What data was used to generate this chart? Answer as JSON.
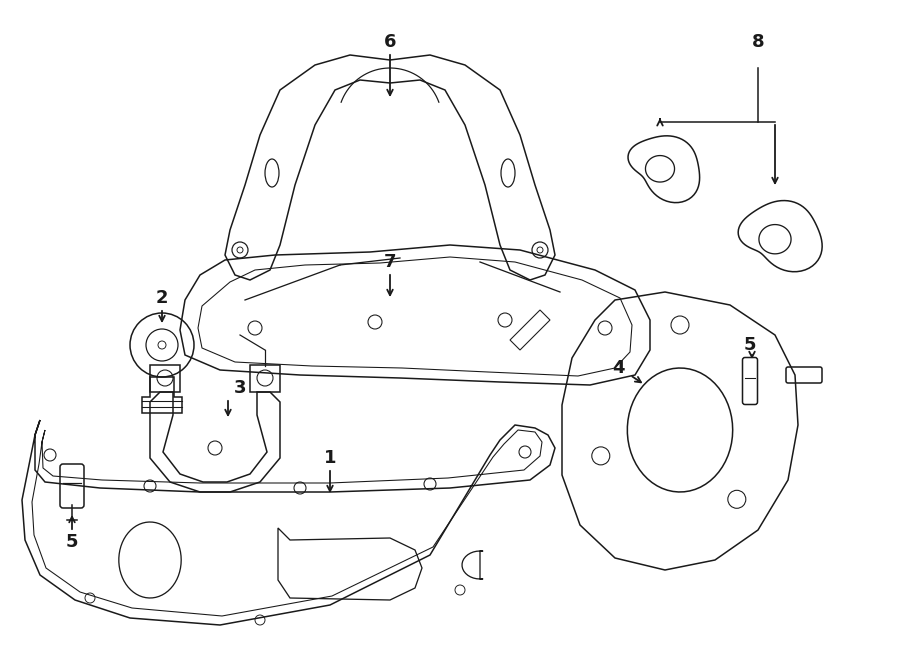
{
  "title": "",
  "bg_color": "#ffffff",
  "line_color": "#1a1a1a",
  "fig_width": 9.0,
  "fig_height": 6.61,
  "lw": 1.1
}
